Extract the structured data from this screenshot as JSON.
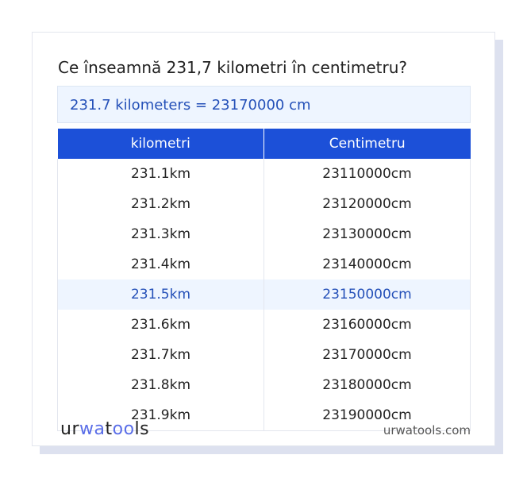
{
  "title": "Ce înseamnă 231,7 kilometri în centimetru?",
  "result": "231.7 kilometers = 23170000 cm",
  "table": {
    "headers": [
      "kilometri",
      "Centimetru"
    ],
    "rows": [
      [
        "231.1km",
        "23110000cm"
      ],
      [
        "231.2km",
        "23120000cm"
      ],
      [
        "231.3km",
        "23130000cm"
      ],
      [
        "231.4km",
        "23140000cm"
      ],
      [
        "231.5km",
        "23150000cm"
      ],
      [
        "231.6km",
        "23160000cm"
      ],
      [
        "231.7km",
        "23170000cm"
      ],
      [
        "231.8km",
        "23180000cm"
      ],
      [
        "231.9km",
        "23190000cm"
      ]
    ],
    "highlighted_row": 4
  },
  "footer": {
    "logo": "urwatools",
    "logo_parts": [
      "ur",
      "wa",
      "t",
      "oo",
      "ls"
    ],
    "site": "urwatools.com"
  },
  "colors": {
    "accent": "#1c50d8",
    "highlight": "#eef5ff"
  }
}
